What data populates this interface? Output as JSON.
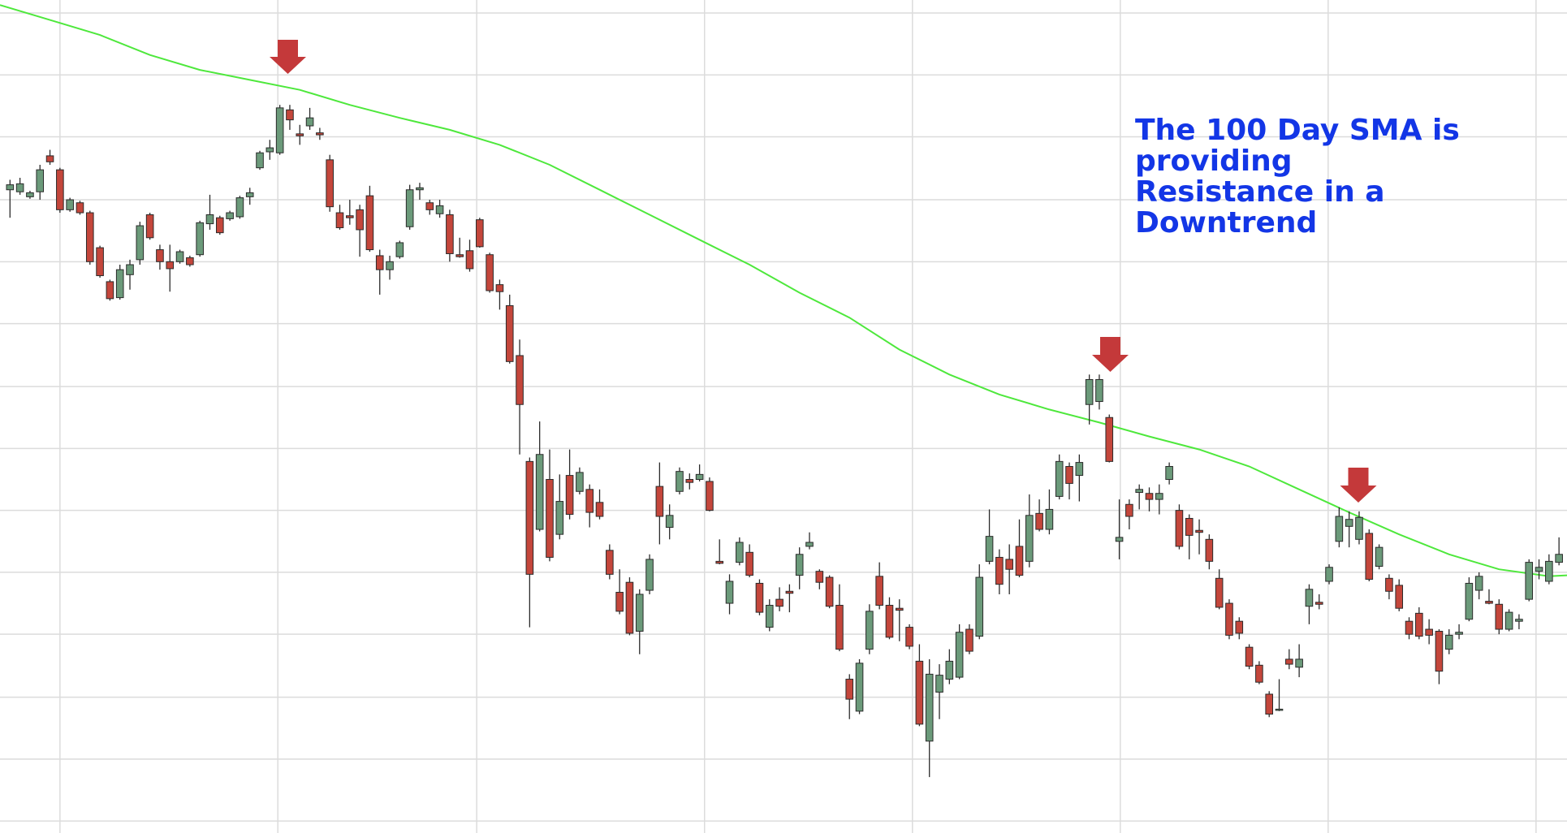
{
  "chart_data": {
    "type": "candlestick",
    "xlim": [
      -1,
      155.8
    ],
    "ylim": [
      0,
      834
    ],
    "xticks": [
      5,
      26.8,
      46.7,
      69.5,
      90.3,
      111.1,
      131.9,
      152.7
    ],
    "yticks": [
      12,
      74,
      136,
      199,
      261,
      323,
      385,
      447,
      510,
      572,
      634,
      697,
      759,
      821
    ],
    "grid": true,
    "up_color": "#6b9a7a",
    "down_color": "#c4463b",
    "open": [
      644,
      642,
      637,
      642,
      678,
      664,
      624,
      631,
      621,
      586,
      552,
      536,
      559,
      574,
      619,
      584,
      572,
      572,
      576,
      579,
      610,
      616,
      615,
      617,
      637,
      666,
      682,
      681,
      724,
      700,
      708,
      701,
      674,
      621,
      618,
      624,
      638,
      578,
      564,
      577,
      607,
      644,
      631,
      620,
      619,
      579,
      583,
      614,
      579,
      549,
      528,
      478,
      372,
      304,
      354,
      299,
      358,
      342,
      344,
      331,
      283,
      241,
      251,
      202,
      243,
      347,
      306,
      342,
      354,
      354,
      352,
      272,
      230,
      271,
      281,
      250,
      206,
      234,
      242,
      258,
      287,
      262,
      256,
      228,
      154,
      122,
      184,
      257,
      228,
      225,
      206,
      172,
      92,
      141,
      154,
      156,
      204,
      197,
      272,
      276,
      274,
      287,
      272,
      320,
      304,
      337,
      367,
      358,
      429,
      432,
      416,
      292,
      329,
      341,
      340,
      334,
      354,
      323,
      315,
      303,
      294,
      255,
      230,
      212,
      186,
      168,
      139,
      123,
      174,
      166,
      227,
      231,
      252,
      292,
      307,
      294,
      300,
      267,
      255,
      248,
      212,
      220,
      204,
      202,
      184,
      199,
      214,
      243,
      232,
      229,
      204,
      212,
      234,
      262,
      252,
      271
    ],
    "high": [
      654,
      656,
      643,
      669,
      684,
      666,
      636,
      633,
      623,
      588,
      554,
      569,
      574,
      612,
      621,
      589,
      589,
      584,
      578,
      613,
      639,
      618,
      623,
      638,
      646,
      683,
      694,
      729,
      729,
      709,
      726,
      706,
      679,
      629,
      634,
      629,
      648,
      584,
      578,
      593,
      649,
      651,
      634,
      634,
      624,
      596,
      594,
      616,
      581,
      554,
      539,
      494,
      376,
      412,
      384,
      359,
      384,
      366,
      349,
      344,
      289,
      264,
      256,
      244,
      279,
      371,
      329,
      366,
      360,
      369,
      356,
      294,
      259,
      296,
      289,
      254,
      234,
      246,
      249,
      286,
      301,
      264,
      258,
      249,
      159,
      174,
      229,
      271,
      236,
      234,
      209,
      189,
      174,
      169,
      184,
      209,
      209,
      269,
      324,
      284,
      289,
      314,
      339,
      334,
      344,
      379,
      371,
      379,
      459,
      459,
      419,
      334,
      334,
      349,
      346,
      349,
      371,
      329,
      319,
      314,
      299,
      264,
      234,
      216,
      189,
      172,
      142,
      154,
      184,
      189,
      249,
      239,
      269,
      326,
      322,
      322,
      304,
      289,
      259,
      254,
      216,
      226,
      214,
      204,
      204,
      209,
      256,
      261,
      244,
      234,
      224,
      219,
      274,
      274,
      279,
      296
    ],
    "low": [
      616,
      639,
      635,
      634,
      669,
      621,
      622,
      619,
      569,
      556,
      533,
      534,
      544,
      569,
      594,
      564,
      542,
      570,
      567,
      577,
      604,
      599,
      613,
      615,
      629,
      664,
      674,
      679,
      704,
      689,
      704,
      694,
      622,
      604,
      609,
      577,
      582,
      539,
      554,
      575,
      604,
      634,
      619,
      616,
      572,
      576,
      562,
      586,
      541,
      524,
      470,
      379,
      206,
      302,
      272,
      294,
      314,
      339,
      306,
      314,
      254,
      219,
      198,
      179,
      239,
      289,
      294,
      339,
      344,
      352,
      322,
      269,
      219,
      268,
      256,
      218,
      202,
      222,
      221,
      244,
      284,
      244,
      225,
      182,
      114,
      119,
      179,
      224,
      194,
      192,
      184,
      107,
      56,
      114,
      149,
      154,
      179,
      194,
      269,
      239,
      239,
      256,
      266,
      302,
      299,
      334,
      334,
      332,
      409,
      424,
      371,
      274,
      304,
      324,
      322,
      319,
      349,
      284,
      274,
      279,
      264,
      224,
      194,
      194,
      164,
      149,
      116,
      122,
      164,
      156,
      209,
      224,
      249,
      286,
      286,
      289,
      252,
      264,
      234,
      222,
      194,
      194,
      189,
      149,
      179,
      194,
      212,
      234,
      229,
      199,
      202,
      204,
      232,
      254,
      249,
      268
    ],
    "close": [
      649,
      650,
      641,
      664,
      672,
      624,
      634,
      621,
      572,
      558,
      535,
      564,
      569,
      608,
      596,
      572,
      565,
      582,
      569,
      611,
      619,
      601,
      621,
      636,
      641,
      681,
      686,
      726,
      714,
      698,
      716,
      699,
      627,
      606,
      616,
      604,
      584,
      564,
      572,
      591,
      644,
      646,
      624,
      628,
      580,
      577,
      565,
      587,
      543,
      542,
      472,
      429,
      259,
      379,
      276,
      332,
      319,
      361,
      321,
      317,
      259,
      222,
      200,
      239,
      274,
      317,
      318,
      362,
      351,
      359,
      323,
      270,
      252,
      291,
      258,
      221,
      228,
      227,
      240,
      279,
      291,
      251,
      227,
      184,
      134,
      170,
      222,
      228,
      196,
      223,
      187,
      109,
      159,
      158,
      172,
      201,
      182,
      256,
      297,
      249,
      264,
      258,
      318,
      304,
      324,
      372,
      350,
      371,
      454,
      454,
      372,
      296,
      317,
      344,
      334,
      340,
      367,
      287,
      298,
      301,
      272,
      226,
      198,
      200,
      167,
      151,
      119,
      124,
      169,
      174,
      244,
      229,
      266,
      317,
      314,
      316,
      254,
      286,
      242,
      225,
      199,
      197,
      198,
      162,
      198,
      201,
      250,
      257,
      230,
      204,
      221,
      214,
      271,
      266,
      272,
      279
    ],
    "sma": {
      "color": "#4ee83c",
      "x": [
        -1,
        4,
        9,
        14,
        19,
        24,
        29,
        34,
        39,
        44,
        49,
        54,
        59,
        64,
        69,
        74,
        79,
        84,
        89,
        94,
        99,
        104,
        109,
        114,
        119,
        124,
        129,
        134,
        139,
        144,
        149,
        154,
        155.8
      ],
      "values": [
        829,
        814,
        799,
        779,
        764,
        754,
        744,
        729,
        716,
        704,
        689,
        669,
        644,
        619,
        594,
        569,
        541,
        516,
        484,
        459,
        439,
        424,
        411,
        397,
        384,
        367,
        344,
        321,
        299,
        279,
        264,
        257,
        258
      ]
    },
    "annotation": [
      "The 100 Day SMA is",
      "providing",
      "Resistance in a",
      "Downtrend"
    ]
  }
}
